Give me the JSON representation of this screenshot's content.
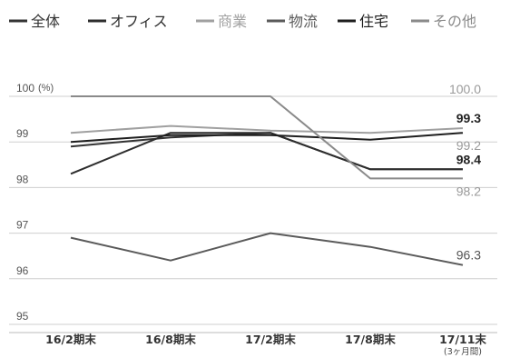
{
  "chart_data": {
    "type": "line",
    "unit_label": "(%)",
    "ylim": [
      95,
      100
    ],
    "yticks": [
      "100",
      "99",
      "98",
      "97",
      "96",
      "95"
    ],
    "grid": true,
    "legend_position": "top",
    "categories": [
      "16/2期末",
      "16/8期末",
      "17/2期末",
      "17/8期末",
      "17/11末"
    ],
    "category_note": "(3ヶ月間)",
    "series": [
      {
        "name": "全体",
        "color": "#333333",
        "values": [
          98.9,
          99.1,
          99.2,
          98.4,
          98.4
        ]
      },
      {
        "name": "オフィス",
        "color": "#2d2d2d",
        "values": [
          98.3,
          99.2,
          99.2,
          98.4,
          98.4
        ]
      },
      {
        "name": "商業",
        "color": "#a0a0a0",
        "values": [
          99.2,
          99.35,
          99.25,
          99.2,
          99.3
        ]
      },
      {
        "name": "物流",
        "color": "#5a5a5a",
        "values": [
          96.9,
          96.4,
          97.0,
          96.7,
          96.3
        ]
      },
      {
        "name": "住宅",
        "color": "#1e1e1e",
        "values": [
          99.0,
          99.15,
          99.15,
          99.05,
          99.2
        ]
      },
      {
        "name": "その他",
        "color": "#8a8a8a",
        "values": [
          100.0,
          100.0,
          100.0,
          98.2,
          98.2
        ]
      }
    ],
    "data_labels": [
      {
        "text": "100.0",
        "value": 100.0,
        "color": "#9a9a9a"
      },
      {
        "text": "99.3",
        "value": 99.3,
        "color": "#222222"
      },
      {
        "text": "99.2",
        "value": 99.2,
        "color": "#9a9a9a"
      },
      {
        "text": "98.4",
        "value": 98.4,
        "color": "#222222"
      },
      {
        "text": "98.2",
        "value": 98.2,
        "color": "#9a9a9a"
      },
      {
        "text": "96.3",
        "value": 96.3,
        "color": "#555555"
      }
    ]
  }
}
